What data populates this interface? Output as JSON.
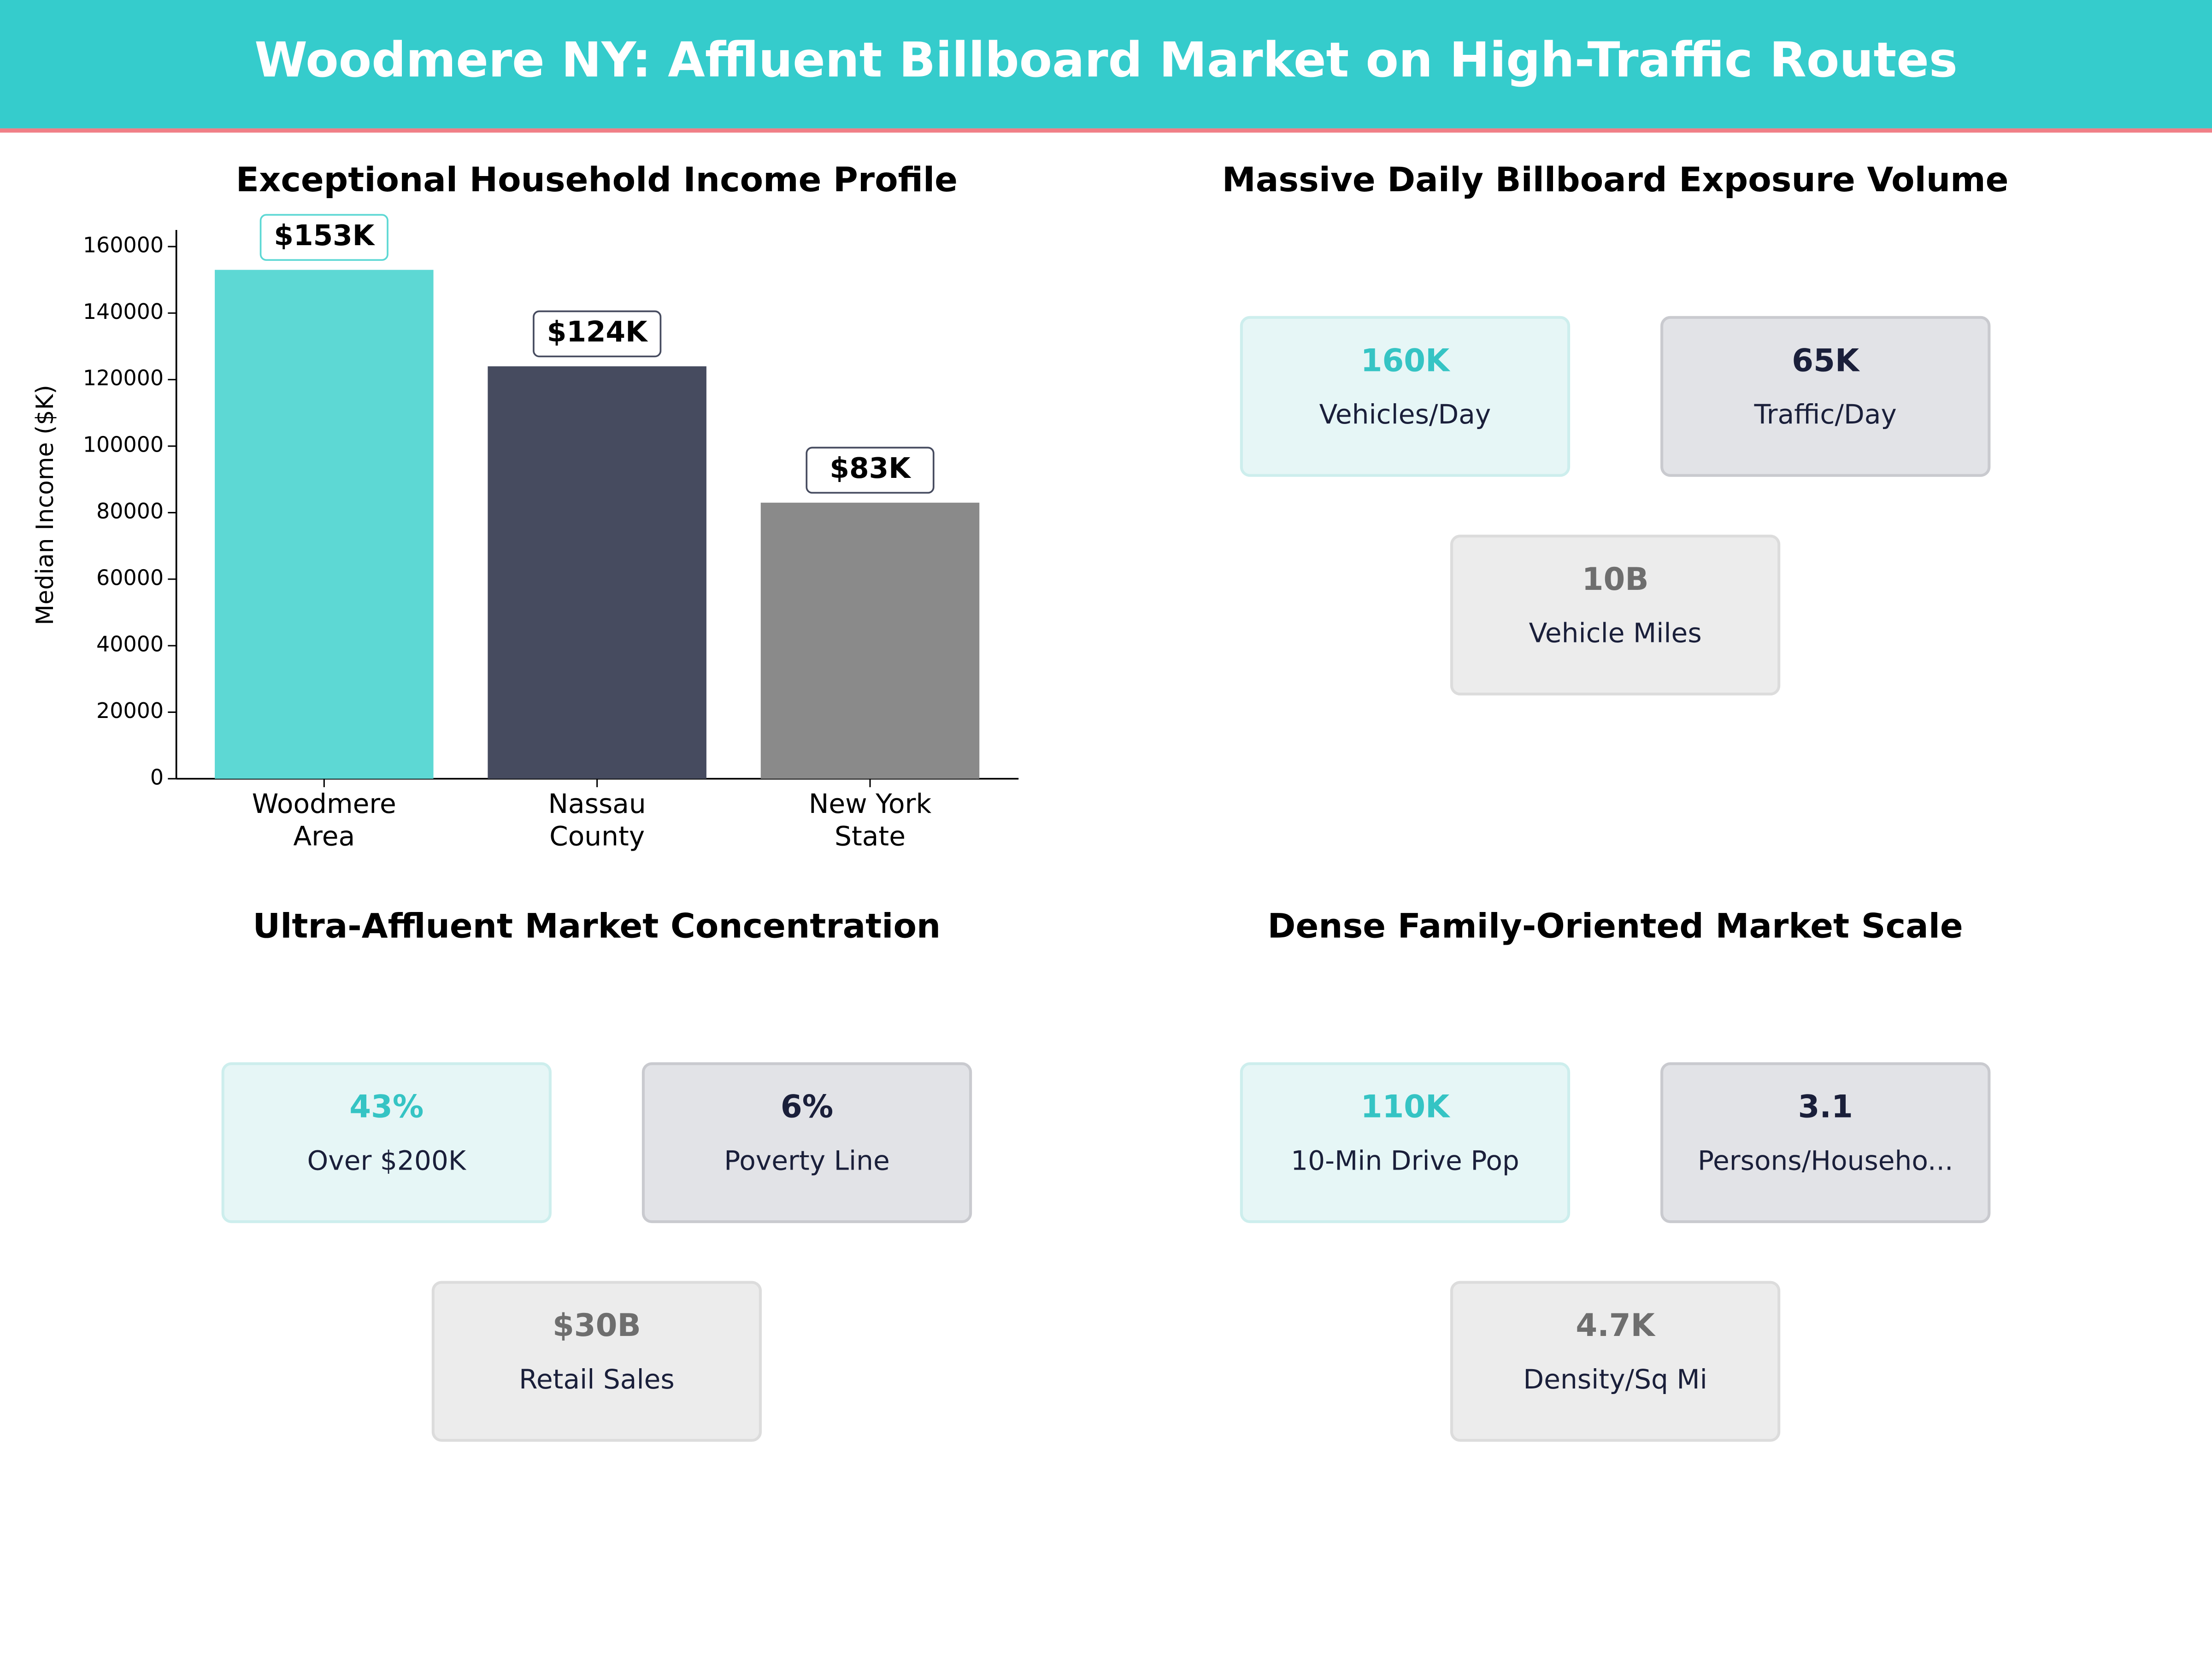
{
  "title": "Woodmere NY: Affluent Billboard Market on High-Traffic Routes",
  "chart_data": {
    "type": "bar",
    "title": "Exceptional Household Income Profile",
    "y_label": "Median Income ($K)",
    "categories": [
      "Woodmere\nArea",
      "Nassau\nCounty",
      "New York\nState"
    ],
    "values": [
      153000,
      124000,
      83000
    ],
    "value_labels": [
      "$153K",
      "$124K",
      "$83K"
    ],
    "colors": [
      "#5dd8d4",
      "#464b5f",
      "#8a8a8a"
    ],
    "ylim": [
      0,
      165000
    ],
    "yticks": [
      0,
      20000,
      40000,
      60000,
      80000,
      100000,
      120000,
      140000,
      160000
    ]
  },
  "panels": [
    {
      "title": "Massive Daily Billboard Exposure Volume",
      "cards": [
        {
          "value": "160K",
          "label": "Vehicles/Day"
        },
        {
          "value": "65K",
          "label": "Traffic/Day"
        },
        {
          "value": "10B",
          "label": "Vehicle Miles"
        }
      ]
    },
    {
      "title": "Ultra-Affluent Market Concentration",
      "cards": [
        {
          "value": "43%",
          "label": "Over $200K"
        },
        {
          "value": "6%",
          "label": "Poverty Line"
        },
        {
          "value": "$30B",
          "label": "Retail Sales"
        }
      ]
    },
    {
      "title": "Dense Family-Oriented Market Scale",
      "cards": [
        {
          "value": "110K",
          "label": "10-Min Drive Pop"
        },
        {
          "value": "3.1",
          "label": "Persons/Househo..."
        },
        {
          "value": "4.7K",
          "label": "Density/Sq Mi"
        }
      ]
    }
  ]
}
